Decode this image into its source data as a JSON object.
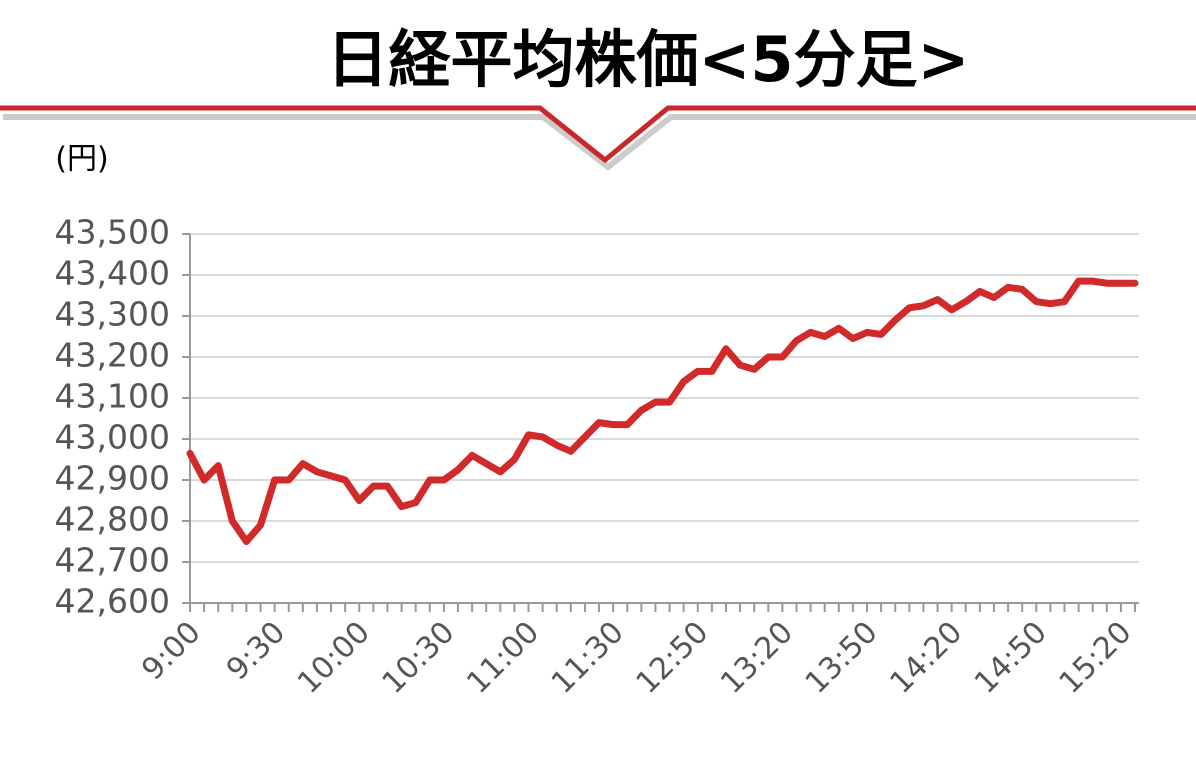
{
  "chart_data": {
    "type": "line",
    "title": "日経平均株価<5分足>",
    "y_label": "(円)",
    "categories": [
      "9:00",
      null,
      null,
      null,
      null,
      null,
      "9:30",
      null,
      null,
      null,
      null,
      null,
      "10:00",
      null,
      null,
      null,
      null,
      null,
      "10:30",
      null,
      null,
      null,
      null,
      null,
      "11:00",
      null,
      null,
      null,
      null,
      null,
      "11:30",
      null,
      null,
      null,
      null,
      null,
      "12:50",
      null,
      null,
      null,
      null,
      null,
      "13:20",
      null,
      null,
      null,
      null,
      null,
      "13:50",
      null,
      null,
      null,
      null,
      null,
      "14:20",
      null,
      null,
      null,
      null,
      null,
      "14:50",
      null,
      null,
      null,
      null,
      null,
      "15:20",
      null
    ],
    "series": [
      {
        "name": "日経平均株価",
        "color": "#d02a2a",
        "values": [
          42965,
          42900,
          42935,
          42800,
          42750,
          42790,
          42900,
          42900,
          42940,
          42920,
          42910,
          42900,
          42850,
          42885,
          42885,
          42835,
          42845,
          42900,
          42900,
          42925,
          42960,
          42940,
          42920,
          42950,
          43010,
          43005,
          42985,
          42970,
          43005,
          43040,
          43035,
          43035,
          43070,
          43090,
          43090,
          43140,
          43165,
          43165,
          43220,
          43180,
          43170,
          43200,
          43200,
          43240,
          43260,
          43250,
          43270,
          43245,
          43260,
          43255,
          43290,
          43320,
          43325,
          43340,
          43315,
          43335,
          43360,
          43345,
          43370,
          43365,
          43335,
          43330,
          43335,
          43385,
          43385,
          43380,
          43380,
          43380
        ]
      }
    ],
    "ylim": [
      42600,
      43500
    ],
    "yticks": [
      {
        "value": 42600,
        "label": "42,600"
      },
      {
        "value": 42700,
        "label": "42,700"
      },
      {
        "value": 42800,
        "label": "42,800"
      },
      {
        "value": 42900,
        "label": "42,900"
      },
      {
        "value": 43000,
        "label": "43,000"
      },
      {
        "value": 43100,
        "label": "43,100"
      },
      {
        "value": 43200,
        "label": "43,200"
      },
      {
        "value": 43300,
        "label": "43,300"
      },
      {
        "value": 43400,
        "label": "43,400"
      },
      {
        "value": 43500,
        "label": "43,500"
      }
    ],
    "grid": true
  }
}
